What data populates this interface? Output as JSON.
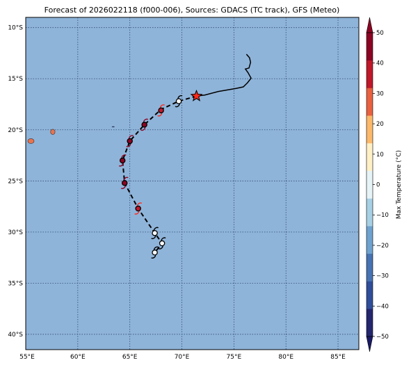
{
  "title": "Forecast of 2026022118 (f000-006), Sources: GDACS (TC track), GFS (Meteo)",
  "colors": {
    "ocean": "#8fb4d9",
    "grid": "#2f4a73",
    "land": "#e8734f",
    "past_track": "#000000",
    "forecast_track": "#000000",
    "current_position": "#ff2a1a"
  },
  "map": {
    "lon_range": [
      55,
      87
    ],
    "lat_range": [
      -41.5,
      -9
    ],
    "lon_ticks": [
      55,
      60,
      65,
      70,
      75,
      80,
      85
    ],
    "lat_ticks": [
      -10,
      -15,
      -20,
      -25,
      -30,
      -35,
      -40
    ],
    "lon_tick_labels": [
      "55°E",
      "60°E",
      "65°E",
      "70°E",
      "75°E",
      "80°E",
      "85°E"
    ],
    "lat_tick_labels": [
      "10°S",
      "15°S",
      "20°S",
      "25°S",
      "30°S",
      "35°S",
      "40°S"
    ]
  },
  "colorbar": {
    "label": "Max Temperature (°C)",
    "min": -50,
    "max": 50,
    "tick_values": [
      -50,
      -40,
      -30,
      -20,
      -10,
      0,
      10,
      20,
      30,
      40,
      50
    ],
    "tick_labels": [
      "−50",
      "−40",
      "−30",
      "−20",
      "−10",
      "0",
      "10",
      "20",
      "30",
      "40",
      "50"
    ],
    "band_colors": [
      "#24266e",
      "#2f4d9a",
      "#4673b2",
      "#6ea3cf",
      "#a7d0e4",
      "#e6f4f8",
      "#fff0c6",
      "#fdb96b",
      "#e9613f",
      "#c0182a",
      "#8c0423"
    ],
    "extend_low_color": "#1a1a66",
    "extend_high_color": "#8c0423"
  },
  "land_areas": [
    {
      "name": "Reunion",
      "lon": 55.5,
      "lat": -21.1
    },
    {
      "name": "Mauritius",
      "lon": 57.6,
      "lat": -20.2
    },
    {
      "name": "Rodrigues",
      "lon": 63.4,
      "lat": -19.7
    }
  ],
  "past_track": [
    {
      "lon": 76.2,
      "lat": -12.6
    },
    {
      "lon": 76.5,
      "lat": -12.95
    },
    {
      "lon": 76.6,
      "lat": -13.4
    },
    {
      "lon": 76.45,
      "lat": -13.95
    },
    {
      "lon": 76.1,
      "lat": -14.05
    },
    {
      "lon": 76.35,
      "lat": -14.4
    },
    {
      "lon": 76.65,
      "lat": -14.95
    },
    {
      "lon": 76.3,
      "lat": -15.4
    },
    {
      "lon": 75.9,
      "lat": -15.8
    },
    {
      "lon": 75.2,
      "lat": -15.95
    },
    {
      "lon": 73.5,
      "lat": -16.25
    },
    {
      "lon": 72.2,
      "lat": -16.6
    },
    {
      "lon": 71.4,
      "lat": -16.7
    }
  ],
  "forecast_track": [
    {
      "lon": 71.4,
      "lat": -16.7
    },
    {
      "lon": 69.7,
      "lat": -17.2
    },
    {
      "lon": 68.0,
      "lat": -18.0
    },
    {
      "lon": 66.4,
      "lat": -19.5
    },
    {
      "lon": 65.0,
      "lat": -21.1
    },
    {
      "lon": 64.3,
      "lat": -23.0
    },
    {
      "lon": 64.5,
      "lat": -25.2
    },
    {
      "lon": 65.8,
      "lat": -27.7
    },
    {
      "lon": 67.4,
      "lat": -30.1
    },
    {
      "lon": 68.1,
      "lat": -31.1
    },
    {
      "lon": 67.4,
      "lat": -32.0
    }
  ],
  "current_position": {
    "lon": 71.4,
    "lat": -16.7
  },
  "storm_symbols": [
    {
      "lon": 69.7,
      "lat": -17.2,
      "temp": null
    },
    {
      "lon": 68.0,
      "lat": -18.1,
      "temp": 33
    },
    {
      "lon": 66.4,
      "lat": -19.5,
      "temp": 44
    },
    {
      "lon": 65.0,
      "lat": -21.1,
      "temp": 48
    },
    {
      "lon": 64.3,
      "lat": -23.0,
      "temp": 46
    },
    {
      "lon": 64.5,
      "lat": -25.2,
      "temp": 47
    },
    {
      "lon": 65.8,
      "lat": -27.7,
      "temp": 33
    },
    {
      "lon": 67.4,
      "lat": -30.1,
      "temp": null
    },
    {
      "lon": 68.1,
      "lat": -31.1,
      "temp": null
    },
    {
      "lon": 67.4,
      "lat": -32.0,
      "temp": null
    }
  ]
}
